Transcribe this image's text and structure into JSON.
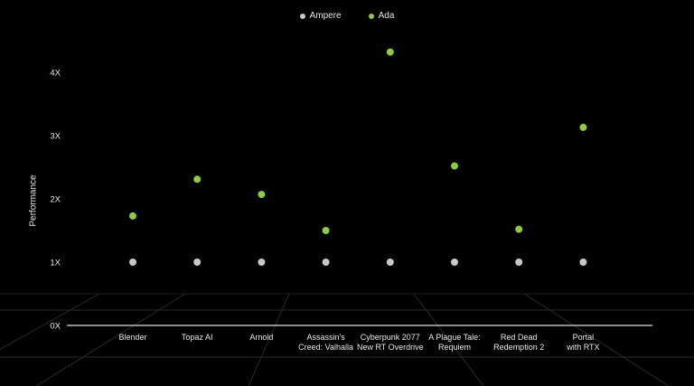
{
  "legend": {
    "ampere_label": "Ampere",
    "ada_label": "Ada"
  },
  "colors": {
    "background": "#000000",
    "ampere": "#c8c8c8",
    "ada": "#8fca3f",
    "text": "#e6e6e6",
    "baseline": "#e0e0e0"
  },
  "chart_data": {
    "type": "scatter",
    "title": "",
    "xlabel": "",
    "ylabel": "Performance",
    "ylim": [
      0,
      4.4
    ],
    "yticks": [
      {
        "value": 0,
        "label": "0X"
      },
      {
        "value": 1,
        "label": "1X"
      },
      {
        "value": 2,
        "label": "2X"
      },
      {
        "value": 3,
        "label": "3X"
      },
      {
        "value": 4,
        "label": "4X"
      }
    ],
    "grid": false,
    "legend_position": "top-center",
    "categories": [
      [
        "Blender"
      ],
      [
        "Topaz AI"
      ],
      [
        "Arnold"
      ],
      [
        "Assassin's",
        "Creed: Valhalla"
      ],
      [
        "Cyberpunk 2077",
        "New RT Overdrive"
      ],
      [
        "A Plague Tale:",
        "Requiem"
      ],
      [
        "Red Dead",
        "Redemption 2"
      ],
      [
        "Portal",
        "with RTX"
      ]
    ],
    "series": [
      {
        "name": "Ampere",
        "values": [
          1,
          1,
          1,
          1,
          1,
          1,
          1,
          1
        ]
      },
      {
        "name": "Ada",
        "values": [
          1.73,
          2.31,
          2.07,
          1.5,
          4.32,
          2.52,
          1.52,
          3.13
        ]
      }
    ]
  }
}
